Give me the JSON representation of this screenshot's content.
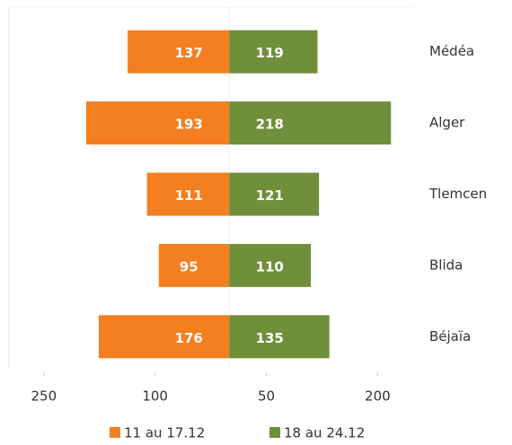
{
  "chart_data": {
    "type": "butterfly_bar",
    "categories": [
      "Médéa",
      "Alger",
      "Tlemcen",
      "Blida",
      "Béjaïa"
    ],
    "series": [
      {
        "name": "11 au 17.12",
        "color": "#f37f20",
        "values": [
          -137,
          -193,
          -111,
          -95,
          -176
        ],
        "value_labels": [
          "137",
          "193",
          "111",
          "95",
          "176"
        ]
      },
      {
        "name": "18 au 24.12",
        "color": "#6f8f3a",
        "values": [
          119,
          218,
          121,
          110,
          135
        ]
      }
    ],
    "xlim": [
      -297,
      248
    ],
    "xticks": [
      {
        "value": -250,
        "label": "250"
      },
      {
        "value": -100,
        "label": "100"
      },
      50,
      200
    ]
  }
}
